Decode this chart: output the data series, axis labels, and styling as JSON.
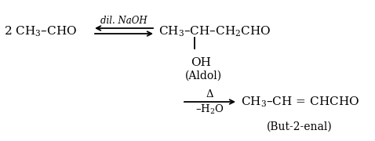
{
  "background_color": "#ffffff",
  "text_color": "#000000",
  "fig_width": 4.78,
  "fig_height": 1.8,
  "dpi": 100,
  "reactant": "$\\mathregular{2\\ CH_3}$–CHO",
  "product1_a": "$\\mathregular{CH_3}$–CH–$\\mathregular{CH_2}$CHO",
  "oh_label": "OH",
  "aldol_label": "(Aldol)",
  "condition_top": "Δ",
  "condition_bottom": "–$\\mathregular{H_2}$O",
  "product2": "$\\mathregular{CH_3}$–CH = CHCHO",
  "but2enal_label": "(But-2-enal)",
  "arrow_label": "dil. NaOH"
}
